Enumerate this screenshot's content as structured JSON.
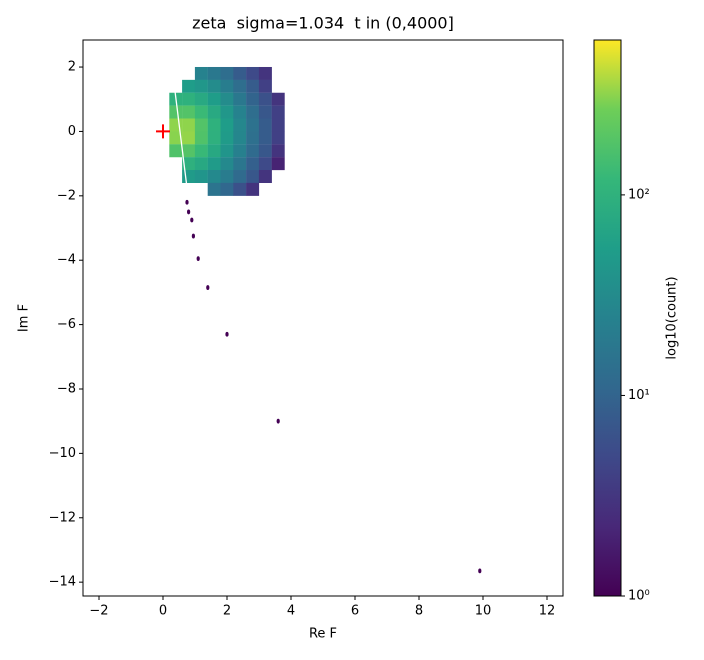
{
  "chart_data": {
    "type": "hexbin",
    "title": "zeta  sigma=1.034  t in (0,4000]",
    "xlabel": "Re F",
    "ylabel": "Im F",
    "colorbar_label": "log10(count)",
    "xlim": [
      -2.5,
      12.5
    ],
    "ylim": [
      -14.43,
      2.84
    ],
    "xticks": [
      {
        "value": -2,
        "label": "−2"
      },
      0,
      2,
      4,
      6,
      8,
      10,
      12
    ],
    "yticks": [
      2,
      0,
      {
        "value": -2,
        "label": "−2"
      },
      {
        "value": -4,
        "label": "−4"
      },
      {
        "value": -6,
        "label": "−6"
      },
      {
        "value": -8,
        "label": "−8"
      },
      {
        "value": -10,
        "label": "−10"
      },
      {
        "value": -12,
        "label": "−12"
      },
      {
        "value": -14,
        "label": "−14"
      }
    ],
    "clim": [
      1,
      592
    ],
    "color_scale": "log",
    "colormap": "viridis",
    "cticks": [
      {
        "value": 1,
        "label": "10⁰"
      },
      {
        "value": 10,
        "label": "10¹"
      },
      {
        "value": 100,
        "label": "10²"
      }
    ],
    "x": [
      1.2,
      1.6,
      2.0,
      2.4,
      2.8,
      3.2,
      0.8,
      1.2,
      1.6,
      2.0,
      2.4,
      2.8,
      3.2,
      0.4,
      0.8,
      1.2,
      1.6,
      2.0,
      2.4,
      2.8,
      3.2,
      3.6,
      0.4,
      0.8,
      1.2,
      1.6,
      2.0,
      2.4,
      2.8,
      3.2,
      3.6,
      0.4,
      0.8,
      1.2,
      1.6,
      2.0,
      2.4,
      2.8,
      3.2,
      3.6,
      0.4,
      0.8,
      1.2,
      1.6,
      2.0,
      2.4,
      2.8,
      3.2,
      3.6,
      0.4,
      0.8,
      1.2,
      1.6,
      2.0,
      2.4,
      2.8,
      3.2,
      3.6,
      0.8,
      1.2,
      1.6,
      2.0,
      2.4,
      2.8,
      3.2,
      3.6,
      0.8,
      1.2,
      1.6,
      2.0,
      2.4,
      2.8,
      3.2,
      1.6,
      2.0,
      2.4,
      2.8
    ],
    "y": [
      1.8,
      1.8,
      1.8,
      1.8,
      1.8,
      1.8,
      1.4,
      1.4,
      1.4,
      1.4,
      1.4,
      1.4,
      1.4,
      1.0,
      1.0,
      1.0,
      1.0,
      1.0,
      1.0,
      1.0,
      1.0,
      1.0,
      0.6,
      0.6,
      0.6,
      0.6,
      0.6,
      0.6,
      0.6,
      0.6,
      0.6,
      0.2,
      0.2,
      0.2,
      0.2,
      0.2,
      0.2,
      0.2,
      0.2,
      0.2,
      -0.2,
      -0.2,
      -0.2,
      -0.2,
      -0.2,
      -0.2,
      -0.2,
      -0.2,
      -0.2,
      -0.6,
      -0.6,
      -0.6,
      -0.6,
      -0.6,
      -0.6,
      -0.6,
      -0.6,
      -0.6,
      -1.0,
      -1.0,
      -1.0,
      -1.0,
      -1.0,
      -1.0,
      -1.0,
      -1.0,
      -1.4,
      -1.4,
      -1.4,
      -1.4,
      -1.4,
      -1.4,
      -1.4,
      -1.8,
      -1.8,
      -1.8,
      -1.8
    ],
    "values": [
      24,
      18,
      13,
      8,
      5,
      3,
      52,
      44,
      32,
      21,
      13,
      8,
      4,
      98,
      98,
      77,
      52,
      32,
      18,
      10,
      6,
      3,
      182,
      182,
      128,
      77,
      44,
      24,
      13,
      7,
      4,
      320,
      320,
      182,
      98,
      52,
      28,
      15,
      8,
      4,
      310,
      330,
      175,
      95,
      50,
      27,
      14,
      8,
      4,
      175,
      185,
      125,
      75,
      42,
      23,
      12,
      7,
      3,
      95,
      75,
      50,
      30,
      17,
      9,
      5,
      2,
      50,
      42,
      30,
      20,
      12,
      7,
      3,
      16,
      11,
      6,
      3
    ],
    "outliers": {
      "x": [
        0.75,
        0.8,
        0.9,
        0.95,
        1.1,
        1.4,
        2.0,
        3.6,
        9.9
      ],
      "y": [
        -2.2,
        -2.5,
        -2.75,
        -3.25,
        -3.95,
        -4.85,
        -6.3,
        -9.0,
        -13.65
      ],
      "values": [
        1,
        1,
        1,
        1,
        1,
        1,
        1,
        1,
        1
      ]
    },
    "line": {
      "x": [
        0.35,
        0.75
      ],
      "y": [
        1.45,
        -1.75
      ],
      "color": "#ffffff"
    },
    "marker": {
      "x": 0,
      "y": 0,
      "color": "#ff0000"
    }
  }
}
